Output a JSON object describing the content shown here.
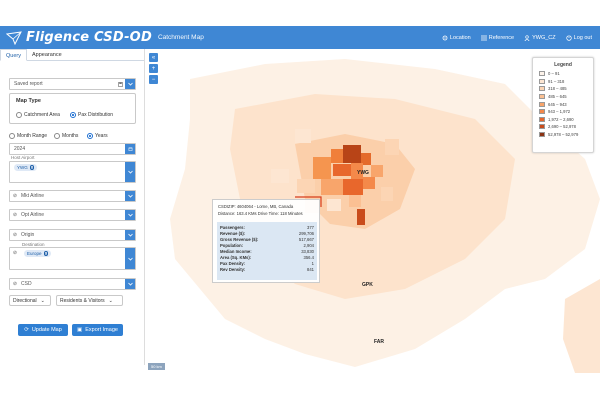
{
  "app": {
    "brand": "Fligence CSD-OD",
    "subtitle": "Catchment Map"
  },
  "nav": [
    {
      "label": "Location",
      "icon": "location-icon"
    },
    {
      "label": "Reference",
      "icon": "list-icon"
    },
    {
      "label": "YWG_CZ",
      "icon": "user-icon"
    },
    {
      "label": "Log out",
      "icon": "logout-icon"
    }
  ],
  "tabs": [
    "Query",
    "Appearance"
  ],
  "query": {
    "saved_report_placeholder": "Saved report",
    "map_type": {
      "label": "Map Type",
      "options": [
        "Catchment Area",
        "Pax Distribution"
      ],
      "selected": "Pax Distribution"
    },
    "range": {
      "options": [
        "Month Range",
        "Months",
        "Years"
      ],
      "selected": "Years"
    },
    "year": "2024",
    "host_airport": {
      "label": "Host Airport",
      "chip": "YWG"
    },
    "mkt_airline_placeholder": "Mkt Airline",
    "opt_airline_placeholder": "Opt Airline",
    "origin_placeholder": "Origin",
    "destination": {
      "label": "Destination",
      "chip": "Europe"
    },
    "csd_placeholder": "CSD",
    "direction": "Directional",
    "residents": "Residents & Visitors",
    "update_button": "Update Map",
    "export_button": "Export Image"
  },
  "legend": {
    "title": "Legend",
    "items": [
      {
        "label": "0 – 91",
        "color": "#fdf3ea"
      },
      {
        "label": "91 – 318",
        "color": "#fde6d2"
      },
      {
        "label": "318 – 485",
        "color": "#fcd5b4"
      },
      {
        "label": "485 – 645",
        "color": "#fbc093"
      },
      {
        "label": "645 – 943",
        "color": "#f8a56b"
      },
      {
        "label": "943 – 1,972",
        "color": "#f4894a"
      },
      {
        "label": "1,972 – 2,690",
        "color": "#e8672c"
      },
      {
        "label": "2,690 – 52,978",
        "color": "#c94c1c"
      },
      {
        "label": "52,978 – 52,979",
        "color": "#8b3314"
      }
    ]
  },
  "tooltip": {
    "line1": "CSDIZIP: 4604064 - Lorne, MB, Canada",
    "line2": "Distance: 163.4 KMs   Drive Time: 118 Minutes",
    "rows": [
      {
        "k": "Passengers:",
        "v": "377"
      },
      {
        "k": "Revenue ($):",
        "v": "299,706"
      },
      {
        "k": "Gross Revenue ($):",
        "v": "517,667"
      },
      {
        "k": "Population:",
        "v": "2,904"
      },
      {
        "k": "Median Income:",
        "v": "33,830"
      },
      {
        "k": "Area (Sq. KMs):",
        "v": "356.4"
      },
      {
        "k": "Pax Density:",
        "v": "1"
      },
      {
        "k": "Rev Density:",
        "v": "841"
      }
    ]
  },
  "map_labels": {
    "ywg": "YWG",
    "gpk": "GPK",
    "far": "FAR"
  },
  "scale": "50 km"
}
